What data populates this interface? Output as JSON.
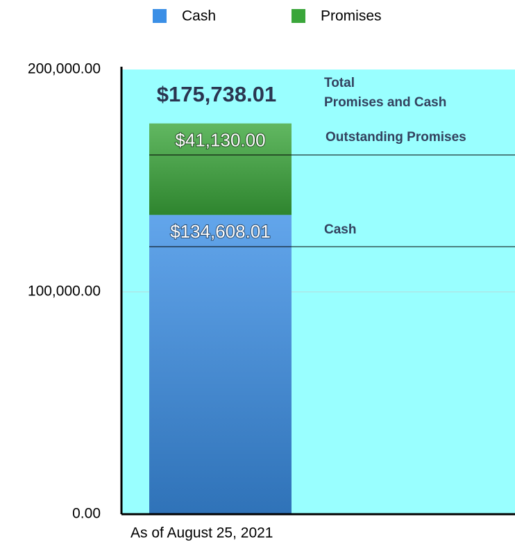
{
  "chart_data": {
    "type": "stacked_bar",
    "categories": [
      "As of August 25, 2021"
    ],
    "series": [
      {
        "name": "Cash",
        "color": "#3b8fe6",
        "values": [
          134608.01
        ],
        "value_labels": [
          "$134,608.01"
        ]
      },
      {
        "name": "Promises",
        "color": "#3aa63a",
        "values": [
          41130.0
        ],
        "value_labels": [
          "$41,130.00"
        ]
      }
    ],
    "annotations": [
      "$175,738.01",
      "Total",
      "Promises and Cash",
      "Outstanding Promises",
      "Cash"
    ],
    "ylim": [
      0,
      200000
    ],
    "yticks": [
      {
        "value": 0,
        "label": "0.00"
      },
      {
        "value": 100000,
        "label": "100,000.00"
      },
      {
        "value": 200000,
        "label": "200,000.00"
      }
    ],
    "grid": true,
    "legend": "top",
    "background": "#99ffff"
  }
}
